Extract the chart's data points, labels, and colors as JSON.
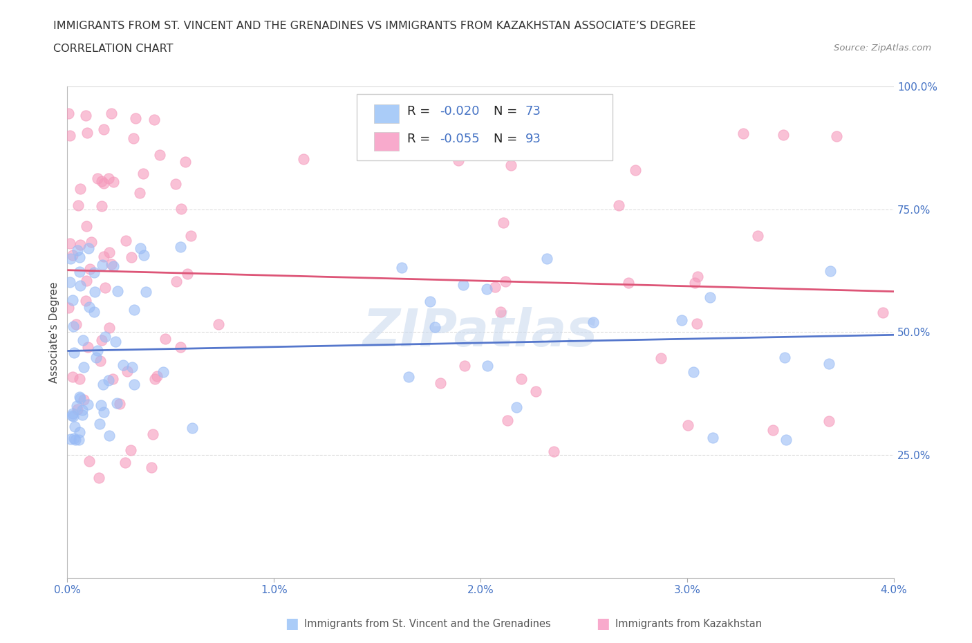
{
  "title_line1": "IMMIGRANTS FROM ST. VINCENT AND THE GRENADINES VS IMMIGRANTS FROM KAZAKHSTAN ASSOCIATE’S DEGREE",
  "title_line2": "CORRELATION CHART",
  "source_text": "Source: ZipAtlas.com",
  "ylabel": "Associate's Degree",
  "series1_name": "Immigrants from St. Vincent and the Grenadines",
  "series2_name": "Immigrants from Kazakhstan",
  "series1_R": "-0.020",
  "series2_R": "-0.055",
  "series1_N": 73,
  "series2_N": 93,
  "series1_dot_color": "#99bbf5",
  "series2_dot_color": "#f599bb",
  "series1_legend_color": "#aaccf8",
  "series2_legend_color": "#f8aacc",
  "series1_line_color": "#5577cc",
  "series2_line_color": "#dd5577",
  "blue_text_color": "#4472c4",
  "title_color": "#333333",
  "watermark_color": "#c8d8ee",
  "grid_color": "#dddddd",
  "xmin": 0.0,
  "xmax": 0.04,
  "ymin": 0.0,
  "ymax": 1.0,
  "xticks": [
    0.0,
    0.01,
    0.02,
    0.03,
    0.04
  ],
  "xticklabels": [
    "0.0%",
    "1.0%",
    "2.0%",
    "3.0%",
    "4.0%"
  ],
  "yticks": [
    0.0,
    0.25,
    0.5,
    0.75,
    1.0
  ],
  "yticklabels_right": [
    "",
    "25.0%",
    "50.0%",
    "75.0%",
    "100.0%"
  ]
}
